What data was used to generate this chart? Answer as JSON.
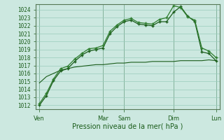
{
  "title": "",
  "xlabel": "Pression niveau de la mer( hPa )",
  "bg_color": "#cce8e0",
  "grid_color": "#99ccbb",
  "line_color1": "#1a5c1a",
  "line_color2": "#2e7d2e",
  "line_color3": "#1a5c1a",
  "ylim": [
    1011.5,
    1024.7
  ],
  "yticks": [
    1012,
    1013,
    1014,
    1015,
    1016,
    1017,
    1018,
    1019,
    1020,
    1021,
    1022,
    1023,
    1024
  ],
  "day_labels": [
    "Ven",
    "",
    "Mar",
    "Sam",
    "",
    "Dim",
    "",
    "Lun"
  ],
  "day_tick_labels": [
    "Ven",
    "Mar",
    "Sam",
    "Dim",
    "Lun"
  ],
  "day_tick_positions": [
    0,
    9,
    12,
    19,
    25
  ],
  "series1_x": [
    0,
    1,
    2,
    3,
    4,
    5,
    6,
    7,
    8,
    9,
    10,
    11,
    12,
    13,
    14,
    15,
    16,
    17,
    18,
    19,
    20,
    21,
    22,
    23,
    24,
    25
  ],
  "series1_y": [
    1012.0,
    1013.2,
    1015.1,
    1016.3,
    1016.6,
    1017.5,
    1018.3,
    1018.8,
    1019.0,
    1019.2,
    1021.0,
    1021.9,
    1022.5,
    1022.7,
    1022.2,
    1022.1,
    1022.0,
    1022.5,
    1022.5,
    1023.7,
    1024.4,
    1023.2,
    1022.5,
    1018.7,
    1018.5,
    1017.6
  ],
  "series2_x": [
    0,
    1,
    2,
    3,
    4,
    5,
    6,
    7,
    8,
    9,
    10,
    11,
    12,
    13,
    14,
    15,
    16,
    17,
    18,
    19,
    20,
    21,
    22,
    23,
    24,
    25
  ],
  "series2_y": [
    1012.2,
    1013.5,
    1015.3,
    1016.6,
    1016.9,
    1017.8,
    1018.5,
    1019.1,
    1019.2,
    1019.5,
    1021.3,
    1022.1,
    1022.7,
    1022.9,
    1022.4,
    1022.3,
    1022.2,
    1022.8,
    1023.0,
    1024.5,
    1024.3,
    1023.1,
    1022.7,
    1019.2,
    1018.8,
    1018.0
  ],
  "series3_x": [
    0,
    1,
    2,
    3,
    4,
    5,
    6,
    7,
    8,
    9,
    10,
    11,
    12,
    13,
    14,
    15,
    16,
    17,
    18,
    19,
    20,
    21,
    22,
    23,
    24,
    25
  ],
  "series3_y": [
    1014.8,
    1015.6,
    1016.0,
    1016.4,
    1016.6,
    1016.8,
    1016.9,
    1017.0,
    1017.1,
    1017.1,
    1017.2,
    1017.3,
    1017.3,
    1017.4,
    1017.4,
    1017.4,
    1017.5,
    1017.5,
    1017.5,
    1017.5,
    1017.6,
    1017.6,
    1017.6,
    1017.6,
    1017.7,
    1017.6
  ]
}
